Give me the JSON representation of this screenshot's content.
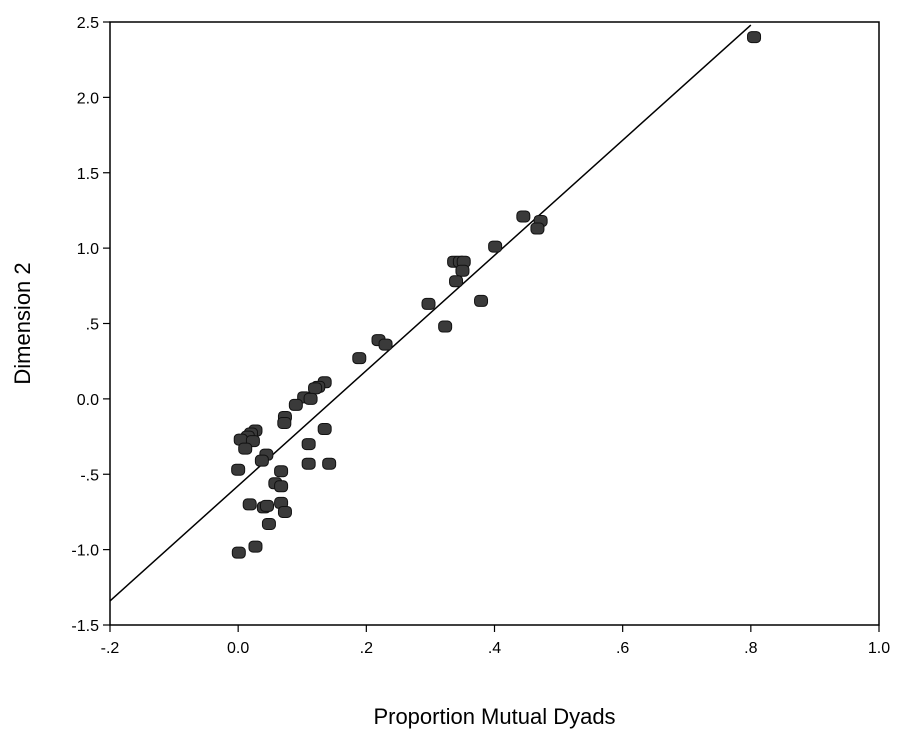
{
  "chart_data": {
    "type": "scatter",
    "title": "",
    "xlabel": "Proportion Mutual Dyads",
    "ylabel": "Dimension 2",
    "xlim": [
      -0.2,
      1.0
    ],
    "ylim": [
      -1.5,
      2.5
    ],
    "x_ticks": [
      {
        "value": -0.2,
        "label": "-.2"
      },
      {
        "value": 0.0,
        "label": "0.0"
      },
      {
        "value": 0.2,
        "label": ".2"
      },
      {
        "value": 0.4,
        "label": ".4"
      },
      {
        "value": 0.6,
        "label": ".6"
      },
      {
        "value": 0.8,
        "label": ".8"
      },
      {
        "value": 1.0,
        "label": "1.0"
      }
    ],
    "y_ticks": [
      {
        "value": -1.5,
        "label": "-1.5"
      },
      {
        "value": -1.0,
        "label": "-1.0"
      },
      {
        "value": -0.5,
        "label": "-.5"
      },
      {
        "value": 0.0,
        "label": "0.0"
      },
      {
        "value": 0.5,
        "label": ".5"
      },
      {
        "value": 1.0,
        "label": "1.0"
      },
      {
        "value": 1.5,
        "label": "1.5"
      },
      {
        "value": 2.0,
        "label": "2.0"
      },
      {
        "value": 2.5,
        "label": "2.5"
      }
    ],
    "grid": false,
    "marker_color": "#3a3a3a",
    "line_color": "#000000",
    "fit_line": {
      "x": [
        -0.2,
        0.8
      ],
      "y": [
        -1.34,
        2.48
      ]
    },
    "points": [
      {
        "x": 0.805,
        "y": 2.4
      },
      {
        "x": 0.445,
        "y": 1.21
      },
      {
        "x": 0.472,
        "y": 1.18
      },
      {
        "x": 0.467,
        "y": 1.13
      },
      {
        "x": 0.401,
        "y": 1.01
      },
      {
        "x": 0.337,
        "y": 0.91
      },
      {
        "x": 0.346,
        "y": 0.91
      },
      {
        "x": 0.352,
        "y": 0.91
      },
      {
        "x": 0.35,
        "y": 0.85
      },
      {
        "x": 0.34,
        "y": 0.78
      },
      {
        "x": 0.297,
        "y": 0.63
      },
      {
        "x": 0.379,
        "y": 0.65
      },
      {
        "x": 0.323,
        "y": 0.48
      },
      {
        "x": 0.219,
        "y": 0.39
      },
      {
        "x": 0.23,
        "y": 0.36
      },
      {
        "x": 0.189,
        "y": 0.27
      },
      {
        "x": 0.135,
        "y": 0.11
      },
      {
        "x": 0.125,
        "y": 0.08
      },
      {
        "x": 0.12,
        "y": 0.07
      },
      {
        "x": 0.103,
        "y": 0.01
      },
      {
        "x": 0.113,
        "y": 0.0
      },
      {
        "x": 0.09,
        "y": -0.04
      },
      {
        "x": 0.073,
        "y": -0.12
      },
      {
        "x": 0.072,
        "y": -0.16
      },
      {
        "x": 0.135,
        "y": -0.2
      },
      {
        "x": 0.11,
        "y": -0.3
      },
      {
        "x": 0.027,
        "y": -0.21
      },
      {
        "x": 0.02,
        "y": -0.23
      },
      {
        "x": 0.015,
        "y": -0.25
      },
      {
        "x": 0.004,
        "y": -0.27
      },
      {
        "x": 0.023,
        "y": -0.28
      },
      {
        "x": 0.011,
        "y": -0.33
      },
      {
        "x": 0.044,
        "y": -0.37
      },
      {
        "x": 0.037,
        "y": -0.41
      },
      {
        "x": 0.11,
        "y": -0.43
      },
      {
        "x": 0.142,
        "y": -0.43
      },
      {
        "x": 0.0,
        "y": -0.47
      },
      {
        "x": 0.067,
        "y": -0.48
      },
      {
        "x": 0.058,
        "y": -0.56
      },
      {
        "x": 0.067,
        "y": -0.58
      },
      {
        "x": 0.018,
        "y": -0.7
      },
      {
        "x": 0.067,
        "y": -0.69
      },
      {
        "x": 0.04,
        "y": -0.72
      },
      {
        "x": 0.045,
        "y": -0.71
      },
      {
        "x": 0.073,
        "y": -0.75
      },
      {
        "x": 0.048,
        "y": -0.83
      },
      {
        "x": 0.027,
        "y": -0.98
      },
      {
        "x": 0.001,
        "y": -1.02
      }
    ]
  }
}
